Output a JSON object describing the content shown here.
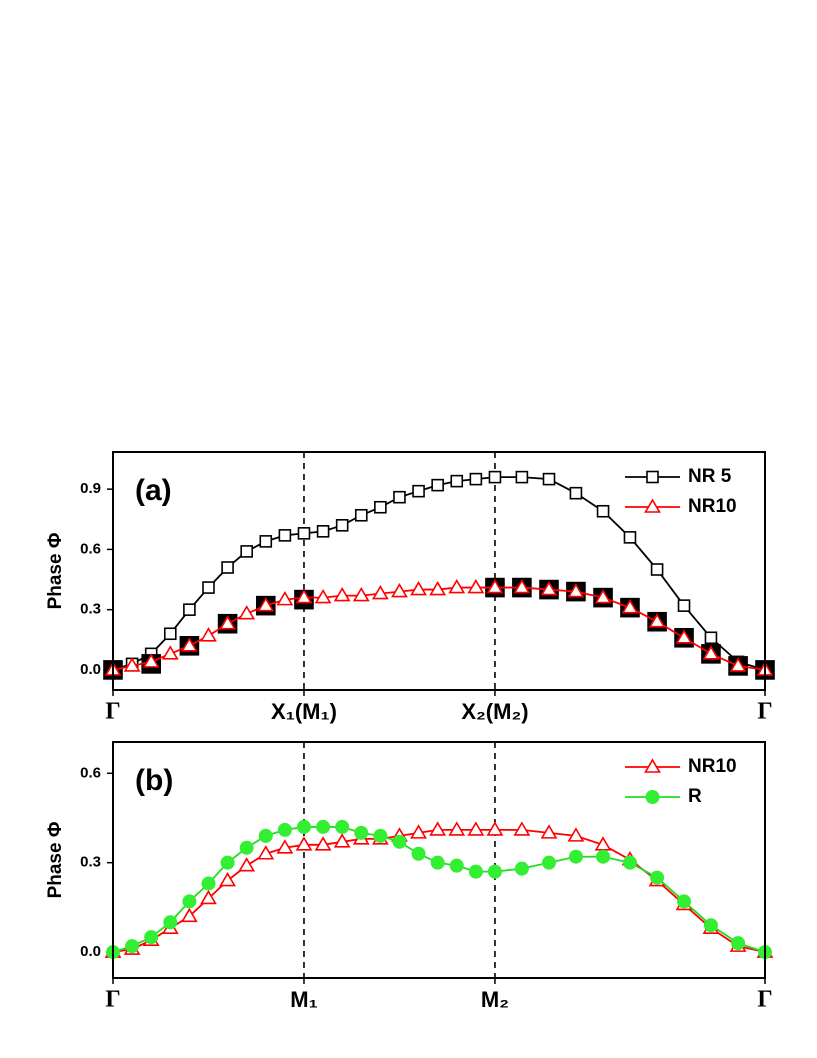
{
  "chart_data": [
    {
      "type": "line",
      "annotation": "(a)",
      "y_label": "Phase Φ",
      "legend": "upper right",
      "x": [
        0,
        0.1,
        0.2,
        0.3,
        0.4,
        0.5,
        0.6,
        0.7,
        0.8,
        0.9,
        1.0,
        1.1,
        1.2,
        1.3,
        1.4,
        1.5,
        1.6,
        1.7,
        1.8,
        1.9,
        2.0,
        2.141,
        2.283,
        2.424,
        2.566,
        2.707,
        2.849,
        2.99,
        3.131,
        3.273,
        3.414
      ],
      "xlim": [
        0,
        3.414
      ],
      "xticks": [
        {
          "value": 0,
          "label": "Γ"
        },
        {
          "value": 1,
          "label": "X₁(M₁)"
        },
        {
          "value": 2,
          "label": "X₂(M₂)"
        },
        {
          "value": 3.414,
          "label": "Γ"
        }
      ],
      "ylim": [
        -0.1,
        1.085
      ],
      "yticks": [
        {
          "value": 0,
          "label": "0.0"
        },
        0.3,
        0.6,
        0.9
      ],
      "series": [
        {
          "name": "NR 5",
          "color": "#000000",
          "marker": "square",
          "filled": false,
          "line": true,
          "values": [
            0.0,
            0.03,
            0.08,
            0.18,
            0.3,
            0.41,
            0.51,
            0.59,
            0.64,
            0.67,
            0.68,
            0.69,
            0.72,
            0.77,
            0.81,
            0.86,
            0.89,
            0.92,
            0.94,
            0.95,
            0.96,
            0.96,
            0.95,
            0.88,
            0.79,
            0.66,
            0.5,
            0.32,
            0.16,
            0.04,
            0.0
          ]
        },
        {
          "color": "#000000",
          "marker": "square",
          "filled": true,
          "line": false,
          "values": [
            0.0,
            null,
            0.03,
            null,
            0.12,
            null,
            0.23,
            null,
            0.32,
            null,
            0.35,
            null,
            null,
            null,
            null,
            null,
            null,
            null,
            null,
            null,
            0.41,
            0.41,
            0.4,
            0.39,
            0.36,
            0.31,
            0.24,
            0.16,
            0.08,
            0.02,
            0.0
          ]
        },
        {
          "name": "NR10",
          "color": "#ff0000",
          "marker": "triangle",
          "filled": false,
          "line": true,
          "values": [
            0.0,
            0.02,
            0.04,
            0.08,
            0.12,
            0.17,
            0.23,
            0.28,
            0.32,
            0.35,
            0.36,
            0.36,
            0.37,
            0.37,
            0.38,
            0.39,
            0.4,
            0.4,
            0.41,
            0.41,
            0.41,
            0.41,
            0.4,
            0.39,
            0.36,
            0.31,
            0.24,
            0.16,
            0.08,
            0.02,
            0.0
          ]
        }
      ]
    },
    {
      "type": "line",
      "annotation": "(b)",
      "y_label": "Phase Φ",
      "legend": "upper right",
      "x": [
        0,
        0.1,
        0.2,
        0.3,
        0.4,
        0.5,
        0.6,
        0.7,
        0.8,
        0.9,
        1.0,
        1.1,
        1.2,
        1.3,
        1.4,
        1.5,
        1.6,
        1.7,
        1.8,
        1.9,
        2.0,
        2.141,
        2.283,
        2.424,
        2.566,
        2.707,
        2.849,
        2.99,
        3.131,
        3.273,
        3.414
      ],
      "xlim": [
        0,
        3.414
      ],
      "xticks": [
        {
          "value": 0,
          "label": "Γ"
        },
        {
          "value": 1,
          "label": "M₁"
        },
        {
          "value": 2,
          "label": "M₂"
        },
        {
          "value": 3.414,
          "label": "Γ"
        }
      ],
      "ylim": [
        -0.087,
        0.705
      ],
      "yticks": [
        {
          "value": 0,
          "label": "0.0"
        },
        0.3,
        0.6
      ],
      "series": [
        {
          "name": "NR10",
          "color": "#ff0000",
          "marker": "triangle",
          "filled": false,
          "line": true,
          "values": [
            0.0,
            0.01,
            0.04,
            0.08,
            0.12,
            0.18,
            0.24,
            0.29,
            0.33,
            0.35,
            0.36,
            0.36,
            0.37,
            0.38,
            0.38,
            0.39,
            0.4,
            0.41,
            0.41,
            0.41,
            0.41,
            0.41,
            0.4,
            0.39,
            0.36,
            0.31,
            0.24,
            0.16,
            0.08,
            0.02,
            0.0
          ]
        },
        {
          "name": "R",
          "color": "#22dd22",
          "marker": "circle",
          "filled": true,
          "line": true,
          "values": [
            0.0,
            0.02,
            0.05,
            0.1,
            0.17,
            0.23,
            0.3,
            0.35,
            0.39,
            0.41,
            0.42,
            0.42,
            0.42,
            0.4,
            0.39,
            0.37,
            0.33,
            0.3,
            0.29,
            0.27,
            0.27,
            0.28,
            0.3,
            0.32,
            0.32,
            0.3,
            0.25,
            0.17,
            0.09,
            0.03,
            0.0
          ]
        }
      ]
    }
  ]
}
